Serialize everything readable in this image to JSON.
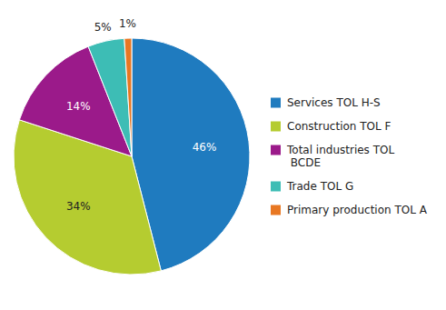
{
  "chart_data": {
    "type": "pie",
    "categories": [
      "Services TOL H-S",
      "Construction TOL F",
      "Total industries TOL\n BCDE",
      "Trade TOL G",
      "Primary production TOL A"
    ],
    "values": [
      46,
      34,
      14,
      5,
      1
    ],
    "value_labels": [
      "46%",
      "34%",
      "14%",
      "5%",
      "1%"
    ],
    "colors": [
      "#1f7bbf",
      "#b5cc30",
      "#9b1a8a",
      "#3dbdb5",
      "#e87722"
    ],
    "data_labels": true,
    "legend": "right"
  }
}
